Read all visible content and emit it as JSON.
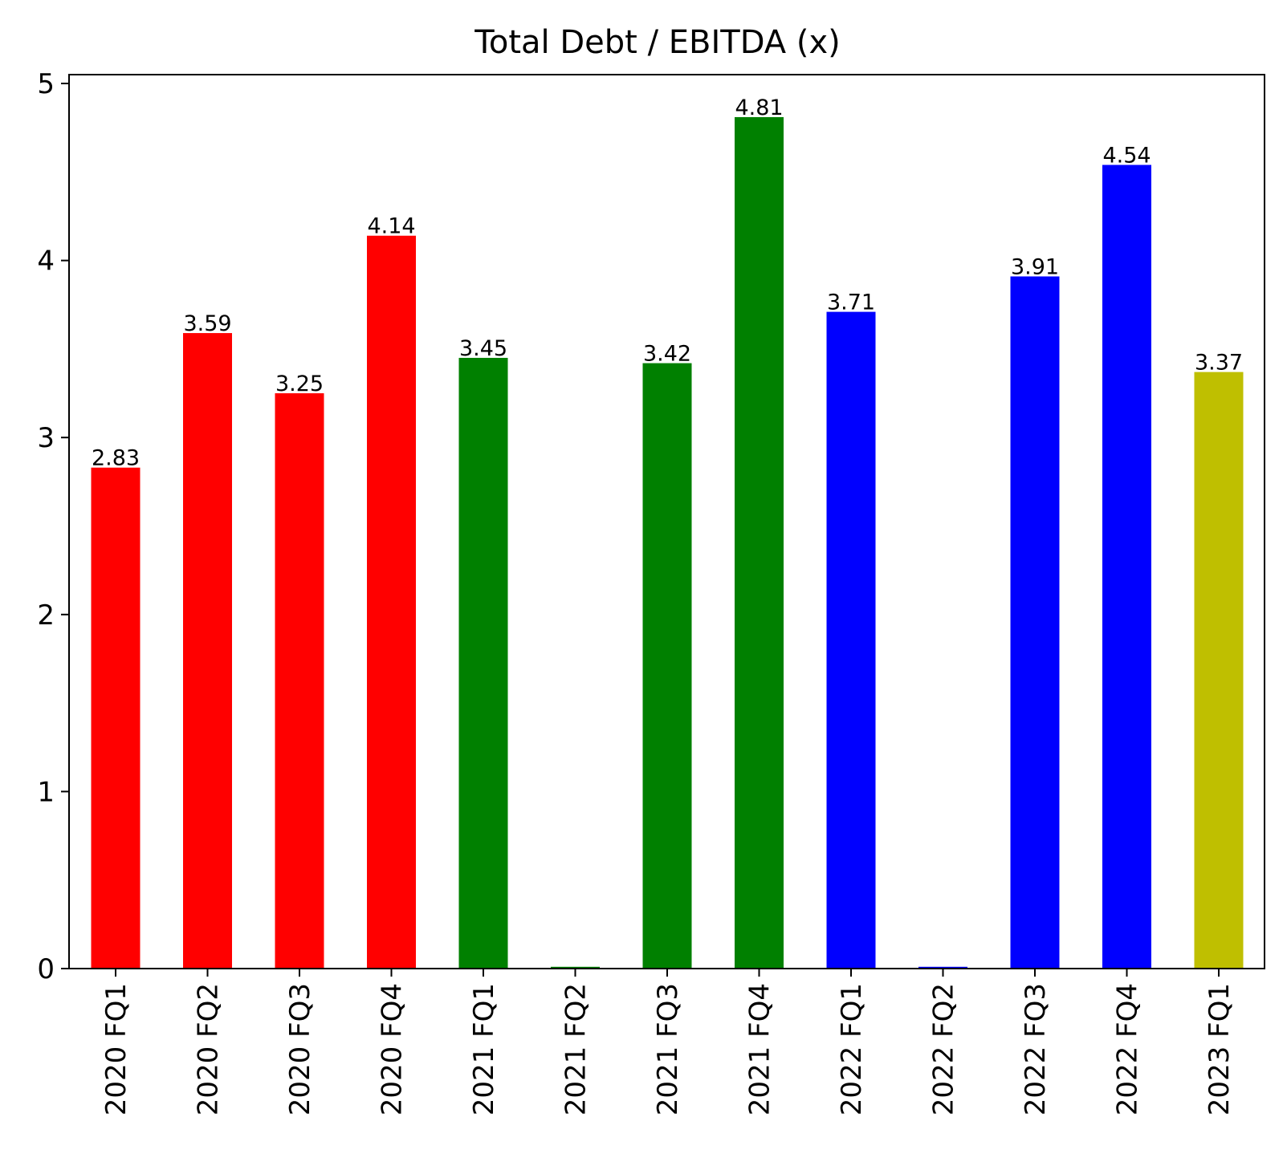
{
  "chart_data": {
    "type": "bar",
    "title": "Total Debt / EBITDA (x)",
    "xlabel": "",
    "ylabel": "",
    "ylim": [
      0,
      5.05
    ],
    "yticks": [
      0,
      1,
      2,
      3,
      4,
      5
    ],
    "grid": false,
    "legend": "none",
    "categories": [
      "2020 FQ1",
      "2020 FQ2",
      "2020 FQ3",
      "2020 FQ4",
      "2021 FQ1",
      "2021 FQ2",
      "2021 FQ3",
      "2021 FQ4",
      "2022 FQ1",
      "2022 FQ2",
      "2022 FQ3",
      "2022 FQ4",
      "2023 FQ1"
    ],
    "values": [
      2.83,
      3.59,
      3.25,
      4.14,
      3.45,
      0.01,
      3.42,
      4.81,
      3.71,
      0.01,
      3.91,
      4.54,
      3.37
    ],
    "value_labels": [
      "2.83",
      "3.59",
      "3.25",
      "4.14",
      "3.45",
      "",
      "3.42",
      "4.81",
      "3.71",
      "",
      "3.91",
      "4.54",
      "3.37"
    ],
    "colors": [
      "#ff0000",
      "#ff0000",
      "#ff0000",
      "#ff0000",
      "#008000",
      "#008000",
      "#008000",
      "#008000",
      "#0000ff",
      "#0000ff",
      "#0000ff",
      "#0000ff",
      "#bfbf00"
    ]
  }
}
